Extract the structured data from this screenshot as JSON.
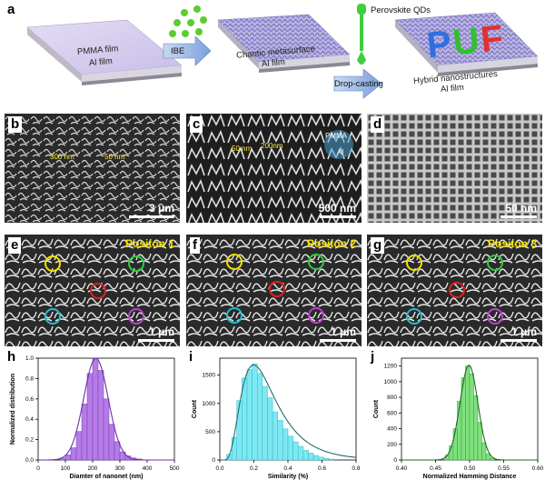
{
  "panels": {
    "a": {
      "label": "a",
      "slab1": {
        "line1": "PMMA  film",
        "line2": "Al  film"
      },
      "arrow1": "IBE",
      "slab2": {
        "line1": "Chaotic metasurface",
        "line2": "Al  film"
      },
      "arrow2": "Drop-casting",
      "pipette_label": "Perovskite QDs",
      "slab3": {
        "line1": "Hybrid nanostructures",
        "line2": "Al  film",
        "letters": "PUF"
      }
    },
    "b": {
      "label": "b",
      "scale": "3 μm",
      "ann1": "300 nm",
      "ann2": "50 nm"
    },
    "c": {
      "label": "c",
      "scale": "500 nm",
      "ann1": "50 nm",
      "ann2": "200nm",
      "ann3": "PMMA",
      "ann4": "Al"
    },
    "d": {
      "label": "d",
      "scale": "50 nm"
    },
    "e": {
      "label": "e",
      "position": "Positon 1",
      "scale": "1 μm"
    },
    "f": {
      "label": "f",
      "position": "Positon 2",
      "scale": "1 μm"
    },
    "g": {
      "label": "g",
      "position": "Positon 3",
      "scale": "1 μm"
    },
    "h": {
      "label": "h"
    },
    "i": {
      "label": "i"
    },
    "j": {
      "label": "j"
    }
  },
  "colors": {
    "purple": "#9b4fd6",
    "cyan": "#33d6ea",
    "green": "#3fd13f",
    "circle_yellow": "#f0e000",
    "circle_green": "#2ecc40",
    "circle_red": "#e02020",
    "circle_cyan": "#20c0d0",
    "circle_magenta": "#c040d0"
  },
  "chart_data": [
    {
      "type": "bar",
      "xlabel": "Diamter of nanonet (nm)",
      "ylabel": "Normalized distribution",
      "xlim": [
        0,
        500
      ],
      "ylim": [
        0,
        1.0
      ],
      "xticks": [
        "0",
        "100",
        "200",
        "300",
        "400",
        "500"
      ],
      "yticks": [
        "0.0",
        "0.2",
        "0.4",
        "0.6",
        "0.8",
        "1.0"
      ],
      "bin_width": 20,
      "x": [
        90,
        110,
        130,
        150,
        170,
        190,
        210,
        230,
        250,
        270,
        290,
        310,
        330,
        350,
        370
      ],
      "values": [
        0.02,
        0.05,
        0.12,
        0.28,
        0.55,
        0.85,
        1.0,
        0.88,
        0.6,
        0.35,
        0.18,
        0.08,
        0.04,
        0.02,
        0.01
      ],
      "fit": {
        "type": "gaussian",
        "mean": 212,
        "sigma": 45,
        "peak": 1.0
      }
    },
    {
      "type": "bar",
      "xlabel": "Similarity (%)",
      "ylabel": "Count",
      "xlim": [
        0.0,
        0.8
      ],
      "ylim": [
        0,
        1800
      ],
      "xticks": [
        "0.0",
        "0.2",
        "0.4",
        "0.6",
        "0.8"
      ],
      "yticks": [
        "0",
        "500",
        "1000",
        "1500"
      ],
      "bin_width": 0.03,
      "x": [
        0.055,
        0.085,
        0.115,
        0.145,
        0.175,
        0.205,
        0.235,
        0.265,
        0.295,
        0.325,
        0.355,
        0.385,
        0.415,
        0.445,
        0.475,
        0.505,
        0.535,
        0.565,
        0.595,
        0.625,
        0.655
      ],
      "values": [
        100,
        400,
        1050,
        1450,
        1600,
        1700,
        1530,
        1300,
        1100,
        850,
        700,
        550,
        420,
        320,
        240,
        170,
        120,
        80,
        50,
        30,
        15
      ],
      "fit": {
        "type": "lognormal",
        "peak_x": 0.2,
        "peak": 1680
      }
    },
    {
      "type": "bar",
      "xlabel": "Normalized Hamming Distance",
      "ylabel": "Count",
      "xlim": [
        0.4,
        0.6
      ],
      "ylim": [
        0,
        1300
      ],
      "xticks": [
        "0.40",
        "0.45",
        "0.50",
        "0.55",
        "0.60"
      ],
      "yticks": [
        "0",
        "200",
        "400",
        "600",
        "800",
        "1000",
        "1200"
      ],
      "bin_width": 0.006,
      "x": [
        0.467,
        0.473,
        0.479,
        0.485,
        0.491,
        0.497,
        0.503,
        0.509,
        0.515,
        0.521,
        0.527,
        0.533
      ],
      "values": [
        60,
        180,
        400,
        750,
        1050,
        1200,
        1100,
        820,
        480,
        220,
        80,
        25
      ],
      "fit": {
        "type": "gaussian",
        "mean": 0.499,
        "sigma": 0.013,
        "peak": 1210
      }
    }
  ]
}
